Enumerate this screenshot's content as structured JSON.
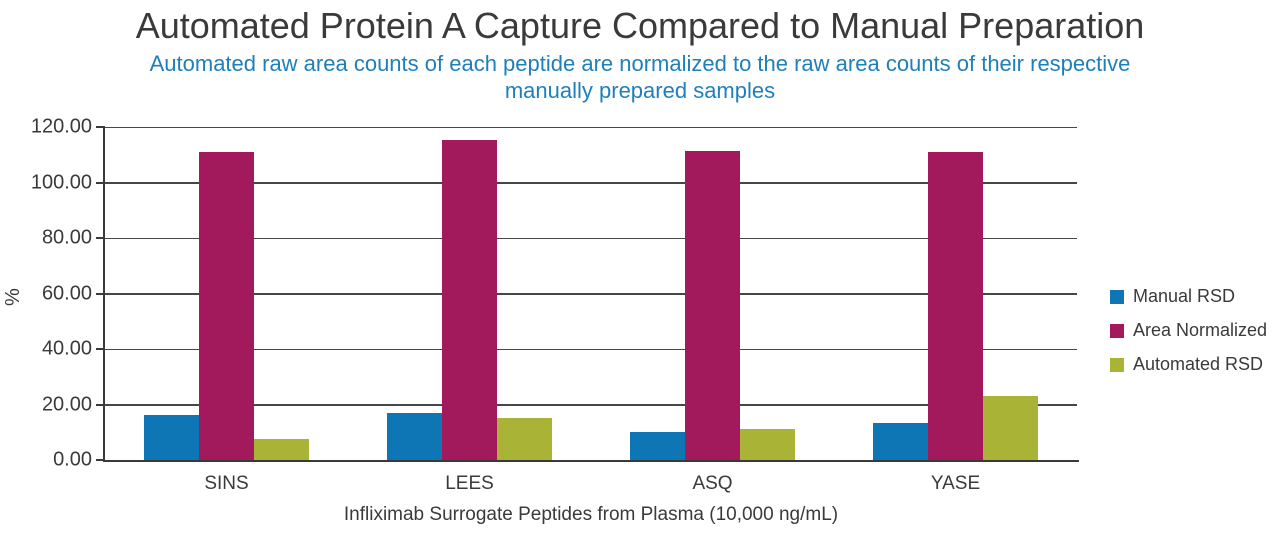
{
  "chart_data": {
    "type": "bar",
    "title": "Automated Protein A Capture Compared to Manual Preparation",
    "subtitle_line1": "Automated raw area counts of each peptide are normalized to the raw area counts of their respective",
    "subtitle_line2": "manually prepared samples",
    "xlabel": "Infliximab Surrogate Peptides from Plasma (10,000 ng/mL)",
    "ylabel": "%",
    "categories": [
      "SINS",
      "LEES",
      "ASQ",
      "YASE"
    ],
    "series": [
      {
        "name": "Manual RSD",
        "color": "#0E76B4",
        "values": [
          16.2,
          17.0,
          10.2,
          13.4
        ]
      },
      {
        "name": "Area Normalized",
        "color": "#A21A5B",
        "values": [
          111.1,
          115.3,
          111.5,
          111.1
        ]
      },
      {
        "name": "Automated RSD",
        "color": "#A9B335",
        "values": [
          7.5,
          15.0,
          11.1,
          23.1
        ]
      }
    ],
    "ylim": [
      0,
      120
    ],
    "ytick_step": 20,
    "ytick_labels": [
      "0.00",
      "20.00",
      "40.00",
      "60.00",
      "80.00",
      "100.00",
      "120.00"
    ],
    "grid": true,
    "legend_position": "right",
    "colors": {
      "title_text": "#3A3A3A",
      "subtitle_text": "#1E7FBB",
      "axis_text": "#3A3A3A",
      "gridline": "#474747",
      "axis_line": "#3A3A3A",
      "background": "#FFFFFF"
    }
  }
}
